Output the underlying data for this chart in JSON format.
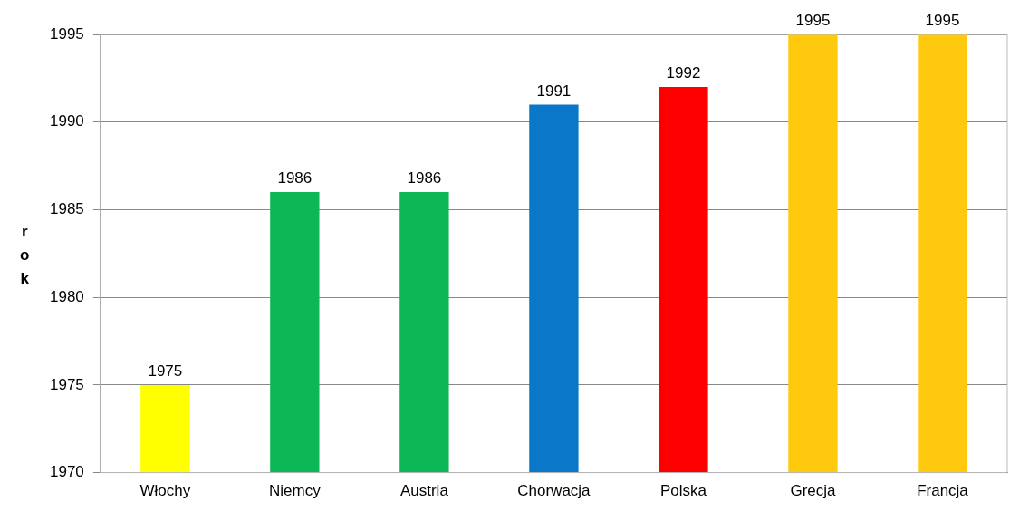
{
  "chart_data": {
    "type": "bar",
    "ylabel": "rok",
    "categories": [
      "Włochy",
      "Niemcy",
      "Austria",
      "Chorwacja",
      "Polska",
      "Grecja",
      "Francja"
    ],
    "values": [
      1975,
      1986,
      1986,
      1991,
      1992,
      1995,
      1995
    ],
    "colors": [
      "#ffff00",
      "#0cb856",
      "#0cb856",
      "#0a77c8",
      "#ff0000",
      "#ffc90e",
      "#ffc90e"
    ],
    "ylim": [
      1970,
      1995
    ],
    "yticks": [
      1970,
      1975,
      1980,
      1985,
      1990,
      1995
    ],
    "grid": "y",
    "legend": false,
    "data_labels": true
  }
}
